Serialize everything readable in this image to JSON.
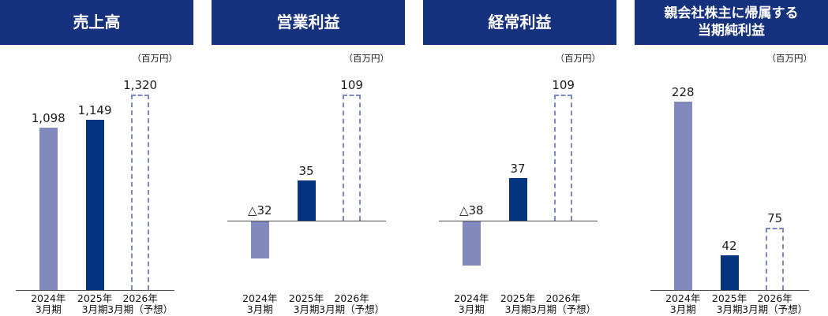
{
  "colors": {
    "header_bg": "#16317d",
    "header_text": "#ffffff",
    "bar_fy2024": "#8289bd",
    "bar_fy2025": "#04337f",
    "bar_forecast_border": "#7d87c0",
    "axis_line": "#4a4a4a",
    "label_text": "#1a1a1a"
  },
  "chart_data": [
    {
      "type": "bar",
      "title": "売上高",
      "title_lines": [
        "売上高"
      ],
      "unit": "（百万円）",
      "categories": [
        "2024年3月期",
        "2025年3月期",
        "2026年3月期（予想）"
      ],
      "category_lines": [
        [
          "2024年",
          "3月期"
        ],
        [
          "2025年",
          "3月期"
        ],
        [
          "2026年",
          "3月期（予想）"
        ]
      ],
      "values": [
        1098,
        1149,
        1320
      ],
      "value_labels": [
        "1,098",
        "1,149",
        "1,320"
      ],
      "bar_styles": [
        "solid-light",
        "solid-dark",
        "dashed-forecast"
      ],
      "ylim": [
        0,
        1450
      ],
      "grid": false,
      "legend": "none"
    },
    {
      "type": "bar",
      "title": "営業利益",
      "title_lines": [
        "営業利益"
      ],
      "unit": "（百万円）",
      "categories": [
        "2024年3月期",
        "2025年3月期",
        "2026年3月期（予想）"
      ],
      "category_lines": [
        [
          "2024年",
          "3月期"
        ],
        [
          "2025年",
          "3月期"
        ],
        [
          "2026年",
          "3月期（予想）"
        ]
      ],
      "values": [
        -32,
        35,
        109
      ],
      "value_labels": [
        "△32",
        "35",
        "109"
      ],
      "bar_styles": [
        "solid-light",
        "solid-dark",
        "dashed-forecast"
      ],
      "ylim": [
        -80,
        130
      ],
      "grid": false,
      "legend": "none"
    },
    {
      "type": "bar",
      "title": "経常利益",
      "title_lines": [
        "経常利益"
      ],
      "unit": "（百万円）",
      "categories": [
        "2024年3月期",
        "2025年3月期",
        "2026年3月期（予想）"
      ],
      "category_lines": [
        [
          "2024年",
          "3月期"
        ],
        [
          "2025年",
          "3月期"
        ],
        [
          "2026年",
          "3月期（予想）"
        ]
      ],
      "values": [
        -38,
        37,
        109
      ],
      "value_labels": [
        "△38",
        "37",
        "109"
      ],
      "bar_styles": [
        "solid-light",
        "solid-dark",
        "dashed-forecast"
      ],
      "ylim": [
        -80,
        130
      ],
      "grid": false,
      "legend": "none"
    },
    {
      "type": "bar",
      "title": "親会社株主に帰属する当期純利益",
      "title_lines": [
        "親会社株主に帰属する",
        "当期純利益"
      ],
      "unit": "（百万円）",
      "categories": [
        "2024年3月期",
        "2025年3月期",
        "2026年3月期（予想）"
      ],
      "category_lines": [
        [
          "2024年",
          "3月期"
        ],
        [
          "2025年",
          "3月期"
        ],
        [
          "2026年",
          "3月期（予想）"
        ]
      ],
      "values": [
        228,
        42,
        75
      ],
      "value_labels": [
        "228",
        "42",
        "75"
      ],
      "bar_styles": [
        "solid-light",
        "solid-dark",
        "dashed-forecast"
      ],
      "ylim": [
        0,
        260
      ],
      "grid": false,
      "legend": "none"
    }
  ]
}
